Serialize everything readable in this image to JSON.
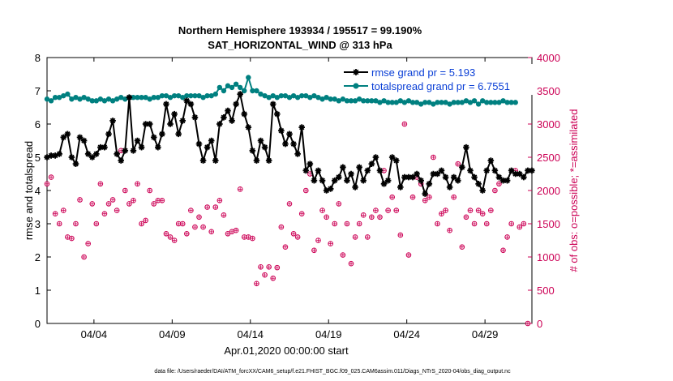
{
  "chart_data": {
    "type": "line",
    "title": "Northern Hemisphere 193934 / 195517 = 99.190%",
    "subtitle": "SAT_HORIZONTAL_WIND @ 313 hPa",
    "xlabel": "Apr.01,2020 00:00:00 start",
    "ylabel_left": "rmse and totalspread",
    "ylabel_right": "# of obs: o=possible; *=assimilated",
    "ylim_left": [
      0,
      8
    ],
    "ylim_right": [
      0,
      4000
    ],
    "yticks_left": [
      "0",
      "1",
      "2",
      "3",
      "4",
      "5",
      "6",
      "7",
      "8"
    ],
    "yticks_right": [
      "0",
      "500",
      "1000",
      "1500",
      "2000",
      "2500",
      "3000",
      "3500",
      "4000"
    ],
    "xlim_days": [
      1,
      32
    ],
    "xticks": [
      {
        "day": 4,
        "label": "04/04"
      },
      {
        "day": 9,
        "label": "04/09"
      },
      {
        "day": 14,
        "label": "04/14"
      },
      {
        "day": 19,
        "label": "04/19"
      },
      {
        "day": 24,
        "label": "04/24"
      },
      {
        "day": 29,
        "label": "04/29"
      }
    ],
    "grid": false,
    "legend_position": "top-right",
    "colors": {
      "rmse": "#000000",
      "totalspread": "#008080",
      "obs": "#cc0055",
      "legend_text": "#0a3fd6"
    },
    "series": [
      {
        "name": "rmse grand pr = 5.193",
        "axis": "left",
        "marker": "asterisk",
        "values": [
          5.0,
          5.05,
          5.05,
          5.1,
          5.6,
          5.7,
          5.0,
          4.8,
          5.6,
          5.5,
          5.1,
          5.0,
          5.1,
          5.3,
          5.3,
          5.7,
          6.1,
          5.1,
          4.9,
          5.2,
          6.8,
          5.2,
          5.5,
          5.3,
          6.0,
          6.0,
          5.6,
          5.3,
          5.7,
          6.6,
          6.0,
          6.3,
          5.7,
          6.1,
          6.7,
          6.6,
          6.2,
          5.4,
          4.9,
          5.3,
          5.5,
          4.9,
          6.0,
          6.2,
          6.4,
          6.1,
          6.6,
          6.9,
          6.3,
          5.9,
          5.2,
          4.9,
          5.5,
          5.3,
          4.9,
          6.6,
          6.3,
          5.8,
          5.4,
          5.7,
          5.4,
          5.1,
          5.9,
          4.6,
          4.8,
          4.3,
          4.6,
          4.3,
          4.0,
          4.05,
          4.3,
          4.4,
          4.7,
          4.3,
          4.5,
          4.1,
          4.7,
          4.3,
          4.6,
          4.8,
          5.0,
          4.6,
          4.2,
          4.3,
          5.0,
          4.9,
          4.1,
          4.4,
          4.4,
          4.4,
          4.5,
          4.3,
          3.9,
          4.2,
          4.5,
          4.5,
          4.6,
          4.4,
          4.1,
          4.4,
          4.3,
          4.7,
          5.3,
          4.6,
          4.4,
          4.2,
          4.0,
          4.6,
          4.9,
          4.6,
          4.4,
          4.3,
          4.3,
          4.6,
          4.5,
          4.5,
          4.4,
          4.6,
          4.6
        ]
      },
      {
        "name": "totalspread grand pr = 6.7551",
        "axis": "left",
        "marker": "filled-circle",
        "values": [
          6.75,
          6.7,
          6.8,
          6.8,
          6.85,
          6.9,
          6.75,
          6.8,
          6.75,
          6.8,
          6.75,
          6.7,
          6.7,
          6.75,
          6.7,
          6.75,
          6.7,
          6.75,
          6.8,
          6.75,
          6.8,
          6.8,
          6.8,
          6.8,
          6.8,
          6.75,
          6.8,
          6.8,
          6.85,
          6.85,
          6.8,
          6.85,
          6.85,
          6.8,
          6.85,
          6.85,
          6.85,
          6.85,
          6.8,
          6.85,
          6.85,
          6.9,
          7.1,
          7.0,
          7.15,
          7.1,
          7.2,
          7.1,
          7.0,
          7.4,
          7.0,
          7.0,
          6.9,
          6.85,
          6.8,
          6.85,
          6.8,
          6.85,
          6.85,
          6.8,
          6.85,
          6.8,
          6.85,
          6.85,
          6.8,
          6.85,
          6.8,
          6.75,
          6.8,
          6.75,
          6.75,
          6.7,
          6.75,
          6.7,
          6.7,
          6.7,
          6.75,
          6.7,
          6.7,
          6.7,
          6.7,
          6.65,
          6.7,
          6.65,
          6.65,
          6.65,
          6.7,
          6.65,
          6.7,
          6.65,
          6.65,
          6.6,
          6.65,
          6.65,
          6.6,
          6.65,
          6.65,
          6.65,
          6.6,
          6.65,
          6.65,
          6.65,
          6.7,
          6.65,
          6.7,
          6.6,
          6.7,
          6.65,
          6.65,
          6.65,
          6.65,
          6.7,
          6.65,
          6.65,
          6.65
        ]
      },
      {
        "name": "obs possible",
        "axis": "right",
        "marker": "open-circle",
        "values": [
          2100,
          2200,
          1650,
          1500,
          1700,
          1300,
          1280,
          1500,
          1860,
          1000,
          1200,
          1800,
          1500,
          2100,
          1650,
          1800,
          1860,
          1700,
          2600,
          2000,
          1800,
          1850,
          2100,
          1500,
          1550,
          2000,
          1800,
          1850,
          1850,
          1350,
          1300,
          1250,
          1500,
          1500,
          1350,
          1700,
          1450,
          1600,
          1450,
          1750,
          1380,
          1750,
          1850,
          1630,
          1350,
          1380,
          1400,
          2020,
          1300,
          1300,
          1280,
          600,
          850,
          730,
          850,
          680,
          840,
          1450,
          1150,
          1800,
          1350,
          1300,
          1650,
          2000,
          2250,
          1100,
          1250,
          1700,
          1600,
          1200,
          1500,
          1800,
          1030,
          1500,
          900,
          1300,
          1500,
          1630,
          1300,
          1600,
          1700,
          1600,
          2300,
          1700,
          1900,
          1700,
          1330,
          3000,
          1030,
          1900,
          2200,
          2100,
          1850,
          1900,
          2500,
          1500,
          1650,
          1700,
          1400,
          1900,
          2400,
          1150,
          1600,
          1700,
          1500,
          1700,
          1650,
          1500,
          1700,
          2000,
          2100,
          1100,
          1300,
          1500,
          2300,
          1450,
          1500,
          0
        ]
      }
    ]
  },
  "footer": "data file: /Users/raeder/DAI/ATM_forcXX/CAM6_setup/f.e21.FHIST_BGC.f09_025.CAM6assim.011/Diags_NTrS_2020-04/obs_diag_output.nc"
}
